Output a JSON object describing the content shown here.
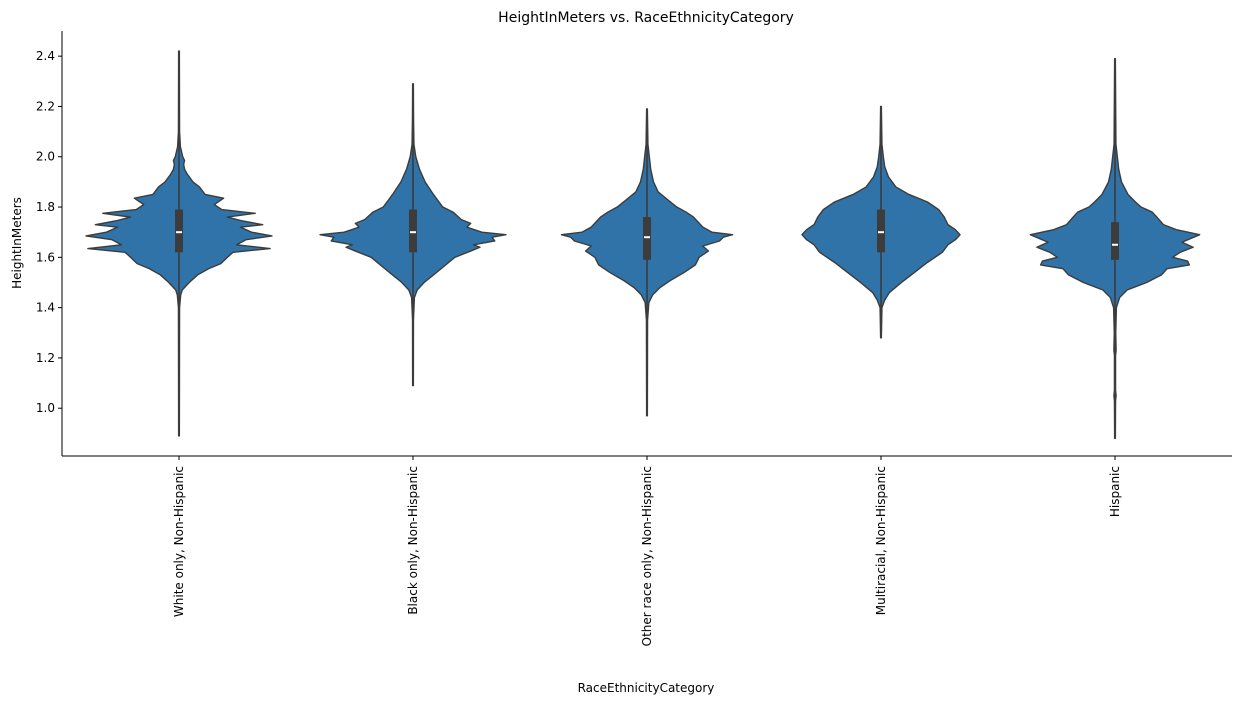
{
  "chart_data": {
    "type": "violin",
    "title": "HeightInMeters vs. RaceEthnicityCategory",
    "xlabel": "RaceEthnicityCategory",
    "ylabel": "HeightInMeters",
    "ylim": [
      0.81,
      2.5
    ],
    "yticks": [
      1.0,
      1.2,
      1.4,
      1.6,
      1.8,
      2.0,
      2.2,
      2.4
    ],
    "grid": false,
    "fill_color": "#2f73a8",
    "edge_color": "#3c3c3c",
    "categories": [
      "White only, Non-Hispanic",
      "Black only, Non-Hispanic",
      "Other race only, Non-Hispanic",
      "Multiracial, Non-Hispanic",
      "Hispanic"
    ],
    "violins": [
      {
        "category": "White only, Non-Hispanic",
        "min": 0.89,
        "q1": 1.62,
        "median": 1.7,
        "q3": 1.79,
        "max": 2.42,
        "profile": [
          [
            0.89,
            0.004
          ],
          [
            1.4,
            0.006
          ],
          [
            1.45,
            0.018
          ],
          [
            1.47,
            0.035
          ],
          [
            1.5,
            0.11
          ],
          [
            1.53,
            0.2
          ],
          [
            1.555,
            0.32
          ],
          [
            1.575,
            0.45
          ],
          [
            1.6,
            0.52
          ],
          [
            1.62,
            0.58
          ],
          [
            1.635,
            0.98
          ],
          [
            1.65,
            0.62
          ],
          [
            1.67,
            0.72
          ],
          [
            1.685,
            1.0
          ],
          [
            1.7,
            0.78
          ],
          [
            1.72,
            0.66
          ],
          [
            1.73,
            0.9
          ],
          [
            1.745,
            0.68
          ],
          [
            1.76,
            0.52
          ],
          [
            1.775,
            0.82
          ],
          [
            1.79,
            0.46
          ],
          [
            1.81,
            0.38
          ],
          [
            1.835,
            0.48
          ],
          [
            1.85,
            0.28
          ],
          [
            1.88,
            0.22
          ],
          [
            1.9,
            0.15
          ],
          [
            1.93,
            0.09
          ],
          [
            1.95,
            0.06
          ],
          [
            1.97,
            0.05
          ],
          [
            1.985,
            0.06
          ],
          [
            2.0,
            0.04
          ],
          [
            2.04,
            0.015
          ],
          [
            2.1,
            0.006
          ],
          [
            2.42,
            0.004
          ]
        ]
      },
      {
        "category": "Black only, Non-Hispanic",
        "min": 1.09,
        "q1": 1.62,
        "median": 1.7,
        "q3": 1.79,
        "max": 2.29,
        "profile": [
          [
            1.09,
            0.004
          ],
          [
            1.35,
            0.005
          ],
          [
            1.44,
            0.015
          ],
          [
            1.47,
            0.045
          ],
          [
            1.5,
            0.12
          ],
          [
            1.53,
            0.22
          ],
          [
            1.56,
            0.32
          ],
          [
            1.6,
            0.45
          ],
          [
            1.625,
            0.62
          ],
          [
            1.64,
            0.72
          ],
          [
            1.65,
            0.65
          ],
          [
            1.665,
            0.88
          ],
          [
            1.68,
            0.85
          ],
          [
            1.69,
            1.0
          ],
          [
            1.7,
            0.74
          ],
          [
            1.72,
            0.58
          ],
          [
            1.735,
            0.62
          ],
          [
            1.75,
            0.52
          ],
          [
            1.78,
            0.43
          ],
          [
            1.8,
            0.32
          ],
          [
            1.83,
            0.26
          ],
          [
            1.85,
            0.22
          ],
          [
            1.9,
            0.13
          ],
          [
            1.95,
            0.07
          ],
          [
            2.0,
            0.03
          ],
          [
            2.05,
            0.01
          ],
          [
            2.15,
            0.006
          ],
          [
            2.29,
            0.004
          ]
        ]
      },
      {
        "category": "Other race only, Non-Hispanic",
        "min": 0.97,
        "q1": 1.59,
        "median": 1.68,
        "q3": 1.76,
        "max": 2.19,
        "profile": [
          [
            0.97,
            0.004
          ],
          [
            1.35,
            0.006
          ],
          [
            1.42,
            0.02
          ],
          [
            1.45,
            0.06
          ],
          [
            1.48,
            0.14
          ],
          [
            1.51,
            0.26
          ],
          [
            1.54,
            0.4
          ],
          [
            1.57,
            0.52
          ],
          [
            1.6,
            0.56
          ],
          [
            1.625,
            0.66
          ],
          [
            1.645,
            0.6
          ],
          [
            1.665,
            0.78
          ],
          [
            1.68,
            0.82
          ],
          [
            1.69,
            0.92
          ],
          [
            1.7,
            0.7
          ],
          [
            1.72,
            0.6
          ],
          [
            1.74,
            0.55
          ],
          [
            1.76,
            0.5
          ],
          [
            1.78,
            0.42
          ],
          [
            1.8,
            0.32
          ],
          [
            1.83,
            0.22
          ],
          [
            1.86,
            0.12
          ],
          [
            1.9,
            0.07
          ],
          [
            1.95,
            0.04
          ],
          [
            2.0,
            0.025
          ],
          [
            2.05,
            0.01
          ],
          [
            2.19,
            0.004
          ]
        ]
      },
      {
        "category": "Multiracial, Non-Hispanic",
        "min": 1.28,
        "q1": 1.62,
        "median": 1.7,
        "q3": 1.79,
        "max": 2.2,
        "profile": [
          [
            1.28,
            0.004
          ],
          [
            1.4,
            0.01
          ],
          [
            1.43,
            0.04
          ],
          [
            1.46,
            0.09
          ],
          [
            1.5,
            0.22
          ],
          [
            1.54,
            0.36
          ],
          [
            1.58,
            0.5
          ],
          [
            1.62,
            0.66
          ],
          [
            1.65,
            0.72
          ],
          [
            1.67,
            0.8
          ],
          [
            1.69,
            0.85
          ],
          [
            1.71,
            0.8
          ],
          [
            1.73,
            0.72
          ],
          [
            1.76,
            0.68
          ],
          [
            1.79,
            0.62
          ],
          [
            1.82,
            0.5
          ],
          [
            1.85,
            0.3
          ],
          [
            1.88,
            0.16
          ],
          [
            1.92,
            0.08
          ],
          [
            1.96,
            0.04
          ],
          [
            2.0,
            0.025
          ],
          [
            2.05,
            0.01
          ],
          [
            2.2,
            0.004
          ]
        ]
      },
      {
        "category": "Hispanic",
        "min": 0.88,
        "q1": 1.59,
        "median": 1.65,
        "q3": 1.74,
        "max": 2.39,
        "profile": [
          [
            0.88,
            0.004
          ],
          [
            1.03,
            0.006
          ],
          [
            1.05,
            0.012
          ],
          [
            1.07,
            0.006
          ],
          [
            1.21,
            0.006
          ],
          [
            1.23,
            0.012
          ],
          [
            1.3,
            0.008
          ],
          [
            1.4,
            0.015
          ],
          [
            1.44,
            0.05
          ],
          [
            1.47,
            0.13
          ],
          [
            1.5,
            0.34
          ],
          [
            1.53,
            0.5
          ],
          [
            1.555,
            0.56
          ],
          [
            1.57,
            0.8
          ],
          [
            1.585,
            0.78
          ],
          [
            1.6,
            0.62
          ],
          [
            1.62,
            0.7
          ],
          [
            1.64,
            0.84
          ],
          [
            1.66,
            0.72
          ],
          [
            1.69,
            0.91
          ],
          [
            1.71,
            0.66
          ],
          [
            1.73,
            0.52
          ],
          [
            1.76,
            0.45
          ],
          [
            1.78,
            0.4
          ],
          [
            1.8,
            0.28
          ],
          [
            1.82,
            0.22
          ],
          [
            1.85,
            0.14
          ],
          [
            1.9,
            0.07
          ],
          [
            1.95,
            0.04
          ],
          [
            2.0,
            0.025
          ],
          [
            2.05,
            0.01
          ],
          [
            2.39,
            0.004
          ]
        ]
      }
    ]
  }
}
